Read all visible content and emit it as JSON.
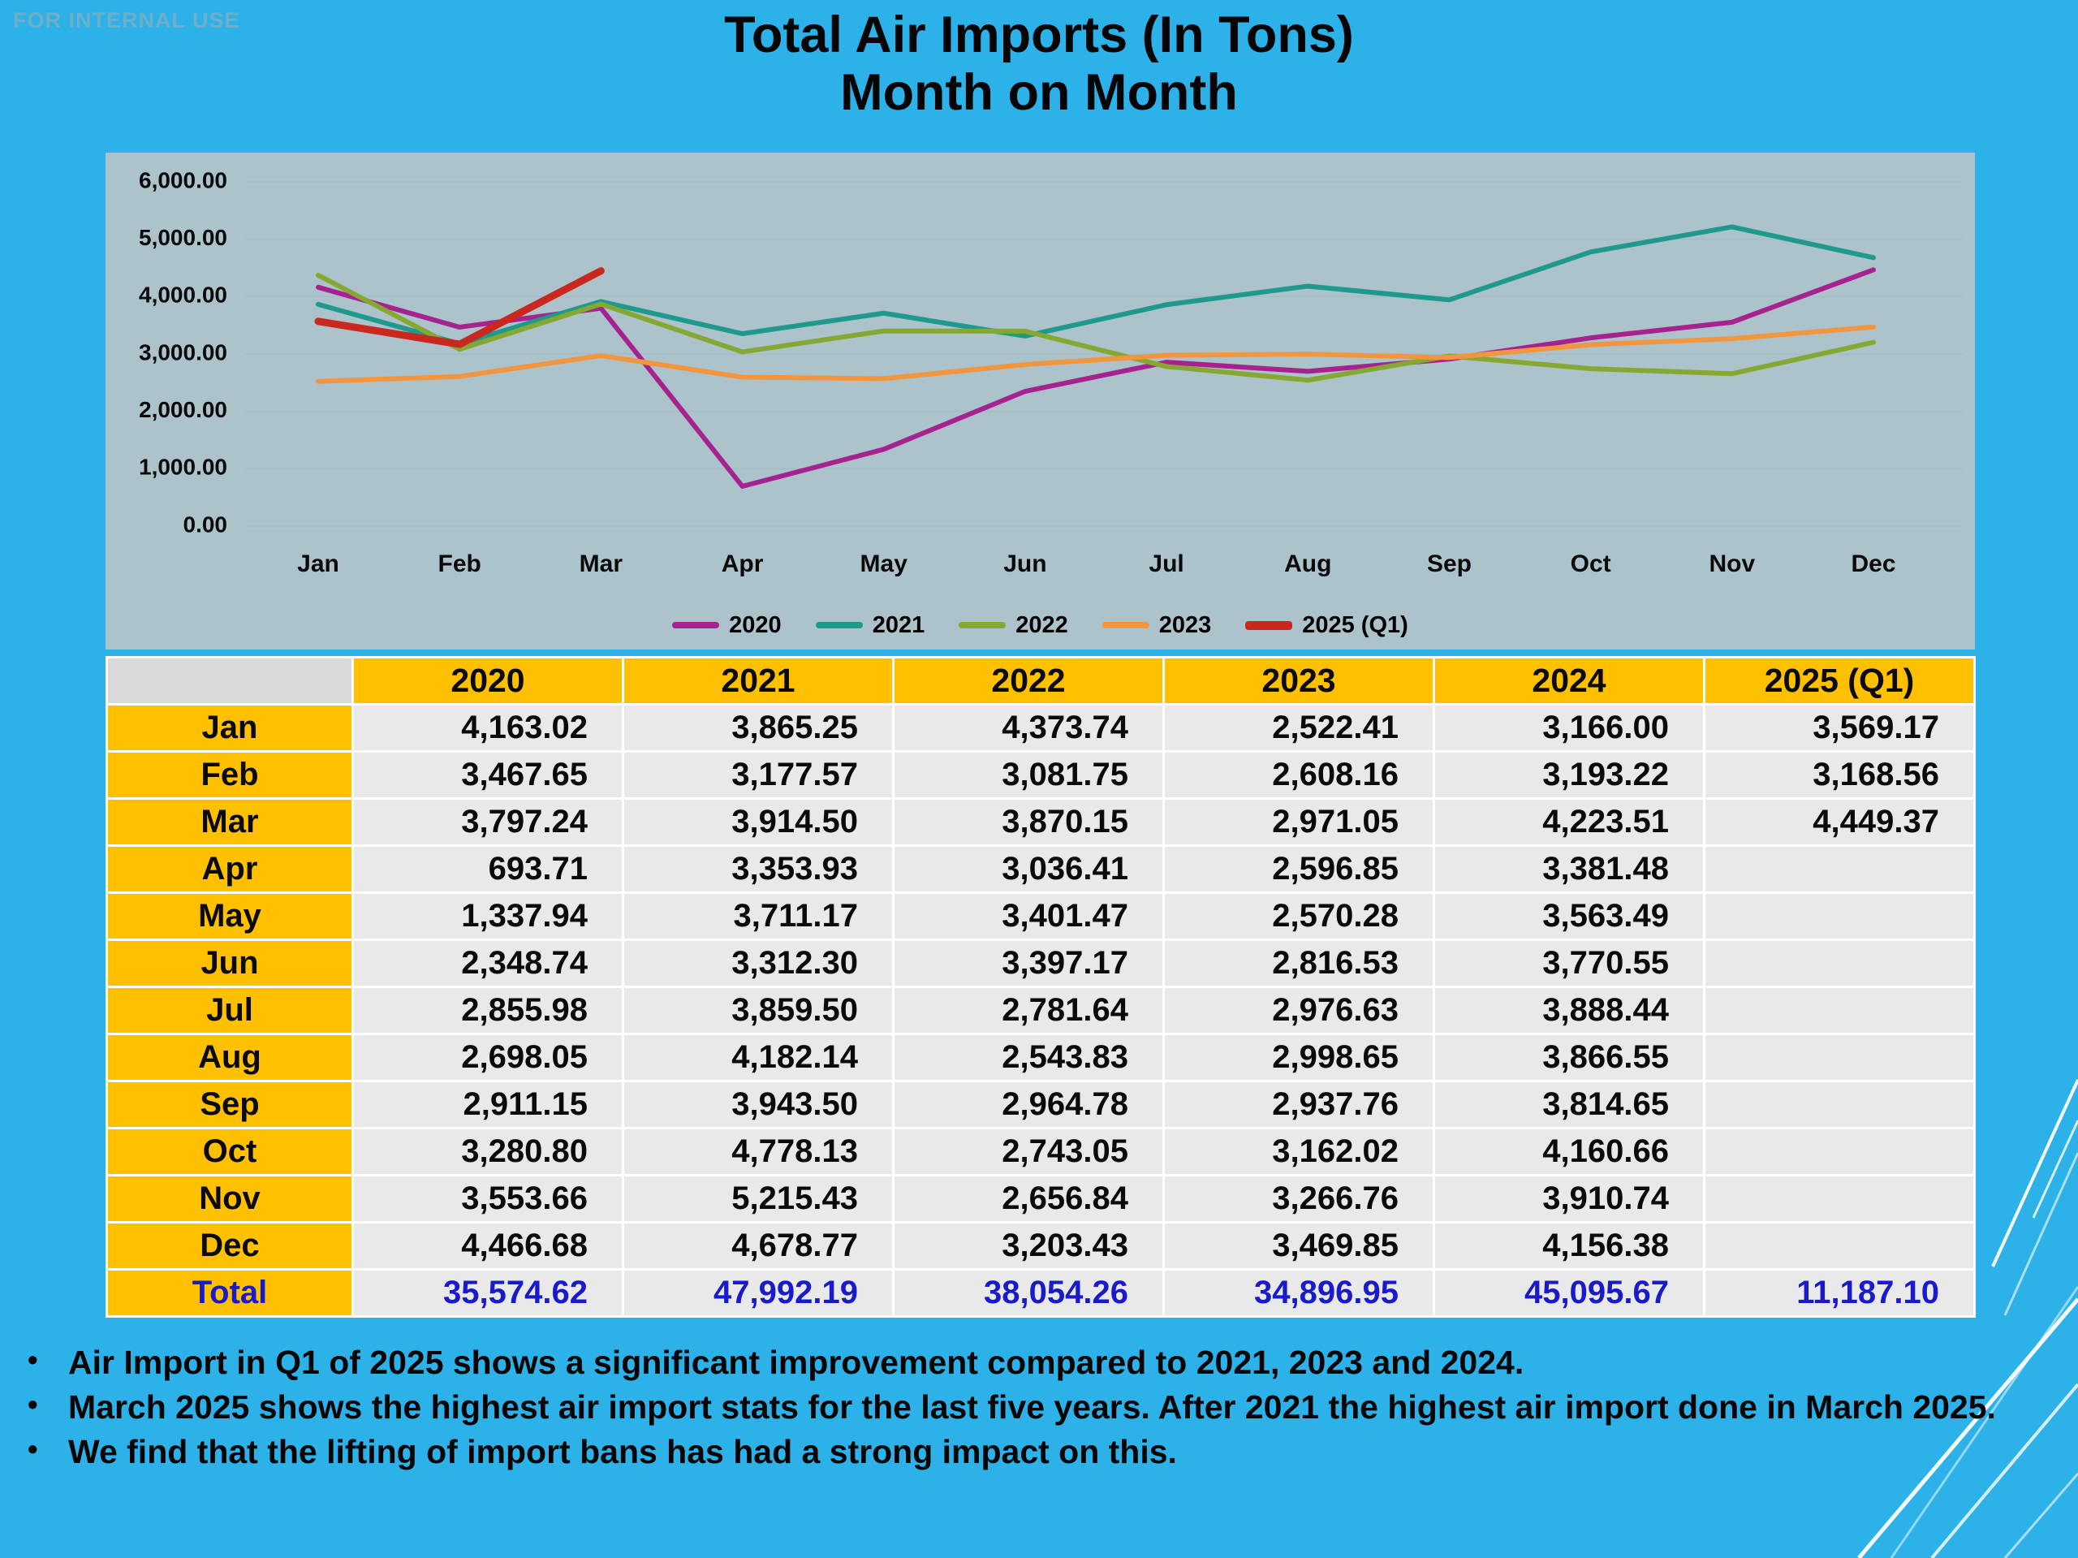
{
  "watermark": "FOR INTERNAL USE",
  "title": {
    "line1": "Total Air Imports (In Tons)",
    "line2": "Month on Month"
  },
  "chart_data": {
    "type": "line",
    "x": [
      "Jan",
      "Feb",
      "Mar",
      "Apr",
      "May",
      "Jun",
      "Jul",
      "Aug",
      "Sep",
      "Oct",
      "Nov",
      "Dec"
    ],
    "ylim": [
      0,
      6000
    ],
    "y_ticks": [
      "6,000.00",
      "5,000.00",
      "4,000.00",
      "3,000.00",
      "2,000.00",
      "1,000.00",
      "0.00"
    ],
    "grid": true,
    "legend_position": "bottom",
    "plot_bg": "#ACC3CC",
    "series": [
      {
        "name": "2020",
        "color": "#A6228F",
        "thick": false,
        "values": [
          4163.02,
          3467.65,
          3797.24,
          693.71,
          1337.94,
          2348.74,
          2855.98,
          2698.05,
          2911.15,
          3280.8,
          3553.66,
          4466.68
        ]
      },
      {
        "name": "2021",
        "color": "#1E998B",
        "thick": false,
        "values": [
          3865.25,
          3177.57,
          3914.5,
          3353.93,
          3711.17,
          3312.3,
          3859.5,
          4182.14,
          3943.5,
          4778.13,
          5215.43,
          4678.77
        ]
      },
      {
        "name": "2022",
        "color": "#86A832",
        "thick": false,
        "values": [
          4373.74,
          3081.75,
          3870.15,
          3036.41,
          3401.47,
          3397.17,
          2781.64,
          2543.83,
          2964.78,
          2743.05,
          2656.84,
          3203.43
        ]
      },
      {
        "name": "2023",
        "color": "#F2953F",
        "thick": false,
        "values": [
          2522.41,
          2608.16,
          2971.05,
          2596.85,
          2570.28,
          2816.53,
          2976.63,
          2998.65,
          2937.76,
          3162.02,
          3266.76,
          3469.85
        ]
      },
      {
        "name": "2025 (Q1)",
        "color": "#C8281E",
        "thick": true,
        "values": [
          3569.17,
          3168.56,
          4449.37
        ]
      }
    ]
  },
  "table": {
    "columns": [
      "",
      "2020",
      "2021",
      "2022",
      "2023",
      "2024",
      "2025 (Q1)"
    ],
    "rows": [
      {
        "label": "Jan",
        "values": [
          "4,163.02",
          "3,865.25",
          "4,373.74",
          "2,522.41",
          "3,166.00",
          "3,569.17"
        ]
      },
      {
        "label": "Feb",
        "values": [
          "3,467.65",
          "3,177.57",
          "3,081.75",
          "2,608.16",
          "3,193.22",
          "3,168.56"
        ]
      },
      {
        "label": "Mar",
        "values": [
          "3,797.24",
          "3,914.50",
          "3,870.15",
          "2,971.05",
          "4,223.51",
          "4,449.37"
        ]
      },
      {
        "label": "Apr",
        "values": [
          "693.71",
          "3,353.93",
          "3,036.41",
          "2,596.85",
          "3,381.48",
          ""
        ]
      },
      {
        "label": "May",
        "values": [
          "1,337.94",
          "3,711.17",
          "3,401.47",
          "2,570.28",
          "3,563.49",
          ""
        ]
      },
      {
        "label": "Jun",
        "values": [
          "2,348.74",
          "3,312.30",
          "3,397.17",
          "2,816.53",
          "3,770.55",
          ""
        ]
      },
      {
        "label": "Jul",
        "values": [
          "2,855.98",
          "3,859.50",
          "2,781.64",
          "2,976.63",
          "3,888.44",
          ""
        ]
      },
      {
        "label": "Aug",
        "values": [
          "2,698.05",
          "4,182.14",
          "2,543.83",
          "2,998.65",
          "3,866.55",
          ""
        ]
      },
      {
        "label": "Sep",
        "values": [
          "2,911.15",
          "3,943.50",
          "2,964.78",
          "2,937.76",
          "3,814.65",
          ""
        ]
      },
      {
        "label": "Oct",
        "values": [
          "3,280.80",
          "4,778.13",
          "2,743.05",
          "3,162.02",
          "4,160.66",
          ""
        ]
      },
      {
        "label": "Nov",
        "values": [
          "3,553.66",
          "5,215.43",
          "2,656.84",
          "3,266.76",
          "3,910.74",
          ""
        ]
      },
      {
        "label": "Dec",
        "values": [
          "4,466.68",
          "4,678.77",
          "3,203.43",
          "3,469.85",
          "4,156.38",
          ""
        ]
      },
      {
        "label": "Total",
        "is_total": true,
        "values": [
          "35,574.62",
          "47,992.19",
          "38,054.26",
          "34,896.95",
          "45,095.67",
          "11,187.10"
        ]
      }
    ]
  },
  "bullets": [
    "Air Import in Q1 of 2025 shows a significant improvement compared to 2021, 2023 and 2024.",
    "March 2025 shows the highest air import stats for the last five years. After 2021 the highest air import done in March 2025.",
    "We find that the lifting of import bans has had a strong impact on this."
  ],
  "colors": {
    "page_bg": "#2CB1E8",
    "panel_bg": "#ACC3CC",
    "header_bg": "#FFC000",
    "cell_bg": "#E9E9E9",
    "total_text": "#1A1ACD"
  }
}
